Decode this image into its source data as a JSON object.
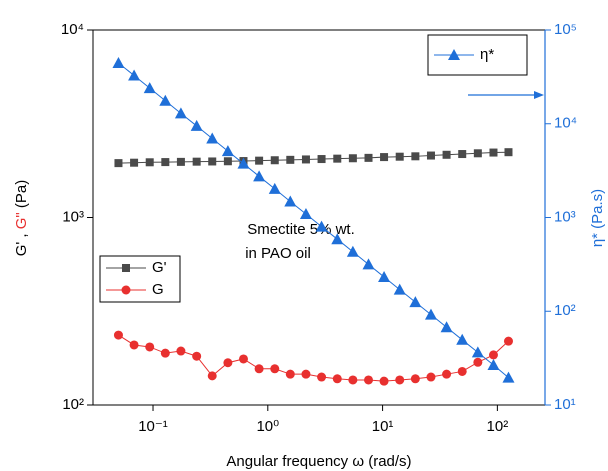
{
  "chart_data": {
    "type": "line",
    "xlabel": "Angular frequency ω (rad/s)",
    "ylabel_g1": "G'",
    "ylabel_sep": ",",
    "ylabel_g2": "G\"",
    "ylabel_unit": "(Pa)",
    "y2label": "η* (Pa.s)",
    "annotation_1": "Smectite 5% wt.",
    "annotation_2": "in PAO oil",
    "log_x": true,
    "log_y": true,
    "log_y2": true,
    "xlim": [
      0.03,
      260
    ],
    "ylim": [
      100,
      10000
    ],
    "y2lim": [
      10,
      100000
    ],
    "xticks": [
      {
        "value": 0.1,
        "label": "10⁻¹"
      },
      {
        "value": 1,
        "label": "10⁰"
      },
      {
        "value": 10,
        "label": "10¹"
      },
      {
        "value": 100,
        "label": "10²"
      }
    ],
    "yticks": [
      {
        "value": 100,
        "label": "10²"
      },
      {
        "value": 1000,
        "label": "10³"
      },
      {
        "value": 10000,
        "label": "10⁴"
      }
    ],
    "y2ticks": [
      {
        "value": 10,
        "label": "10¹"
      },
      {
        "value": 100,
        "label": "10²"
      },
      {
        "value": 1000,
        "label": "10³"
      },
      {
        "value": 10000,
        "label": "10⁴"
      },
      {
        "value": 100000,
        "label": "10⁵"
      }
    ],
    "x": [
      0.05,
      0.0684,
      0.0936,
      0.128,
      0.175,
      0.24,
      0.328,
      0.449,
      0.614,
      0.84,
      1.15,
      1.57,
      2.15,
      2.94,
      4.03,
      5.51,
      7.54,
      10.3,
      14.1,
      19.3,
      26.4,
      36.1,
      49.4,
      67.6,
      92.5,
      125
    ],
    "series": [
      {
        "name": "G'",
        "color": "#4a4a4a",
        "marker": "square",
        "axis": "y",
        "values": [
          1950,
          1960,
          1970,
          1975,
          1980,
          1985,
          1990,
          1995,
          2000,
          2010,
          2020,
          2030,
          2040,
          2050,
          2060,
          2070,
          2080,
          2100,
          2110,
          2120,
          2140,
          2160,
          2180,
          2200,
          2220,
          2230
        ]
      },
      {
        "name": "G",
        "color": "#e8302f",
        "marker": "circle",
        "axis": "y",
        "values": [
          236,
          209,
          204,
          189,
          194,
          182,
          143,
          168,
          176,
          156,
          156,
          146,
          146,
          141,
          138,
          136,
          136,
          134,
          136,
          138,
          141,
          146,
          151,
          169,
          185,
          219
        ]
      },
      {
        "name": "η*",
        "color": "#1f6fd8",
        "marker": "triangle",
        "axis": "y2",
        "values": [
          44500,
          32700,
          24000,
          17600,
          12900,
          9480,
          6960,
          5110,
          3750,
          2750,
          2020,
          1480,
          1090,
          800,
          587,
          431,
          316,
          232,
          170,
          125,
          92,
          67.5,
          49.6,
          36.4,
          26.7,
          19.6
        ]
      }
    ]
  }
}
